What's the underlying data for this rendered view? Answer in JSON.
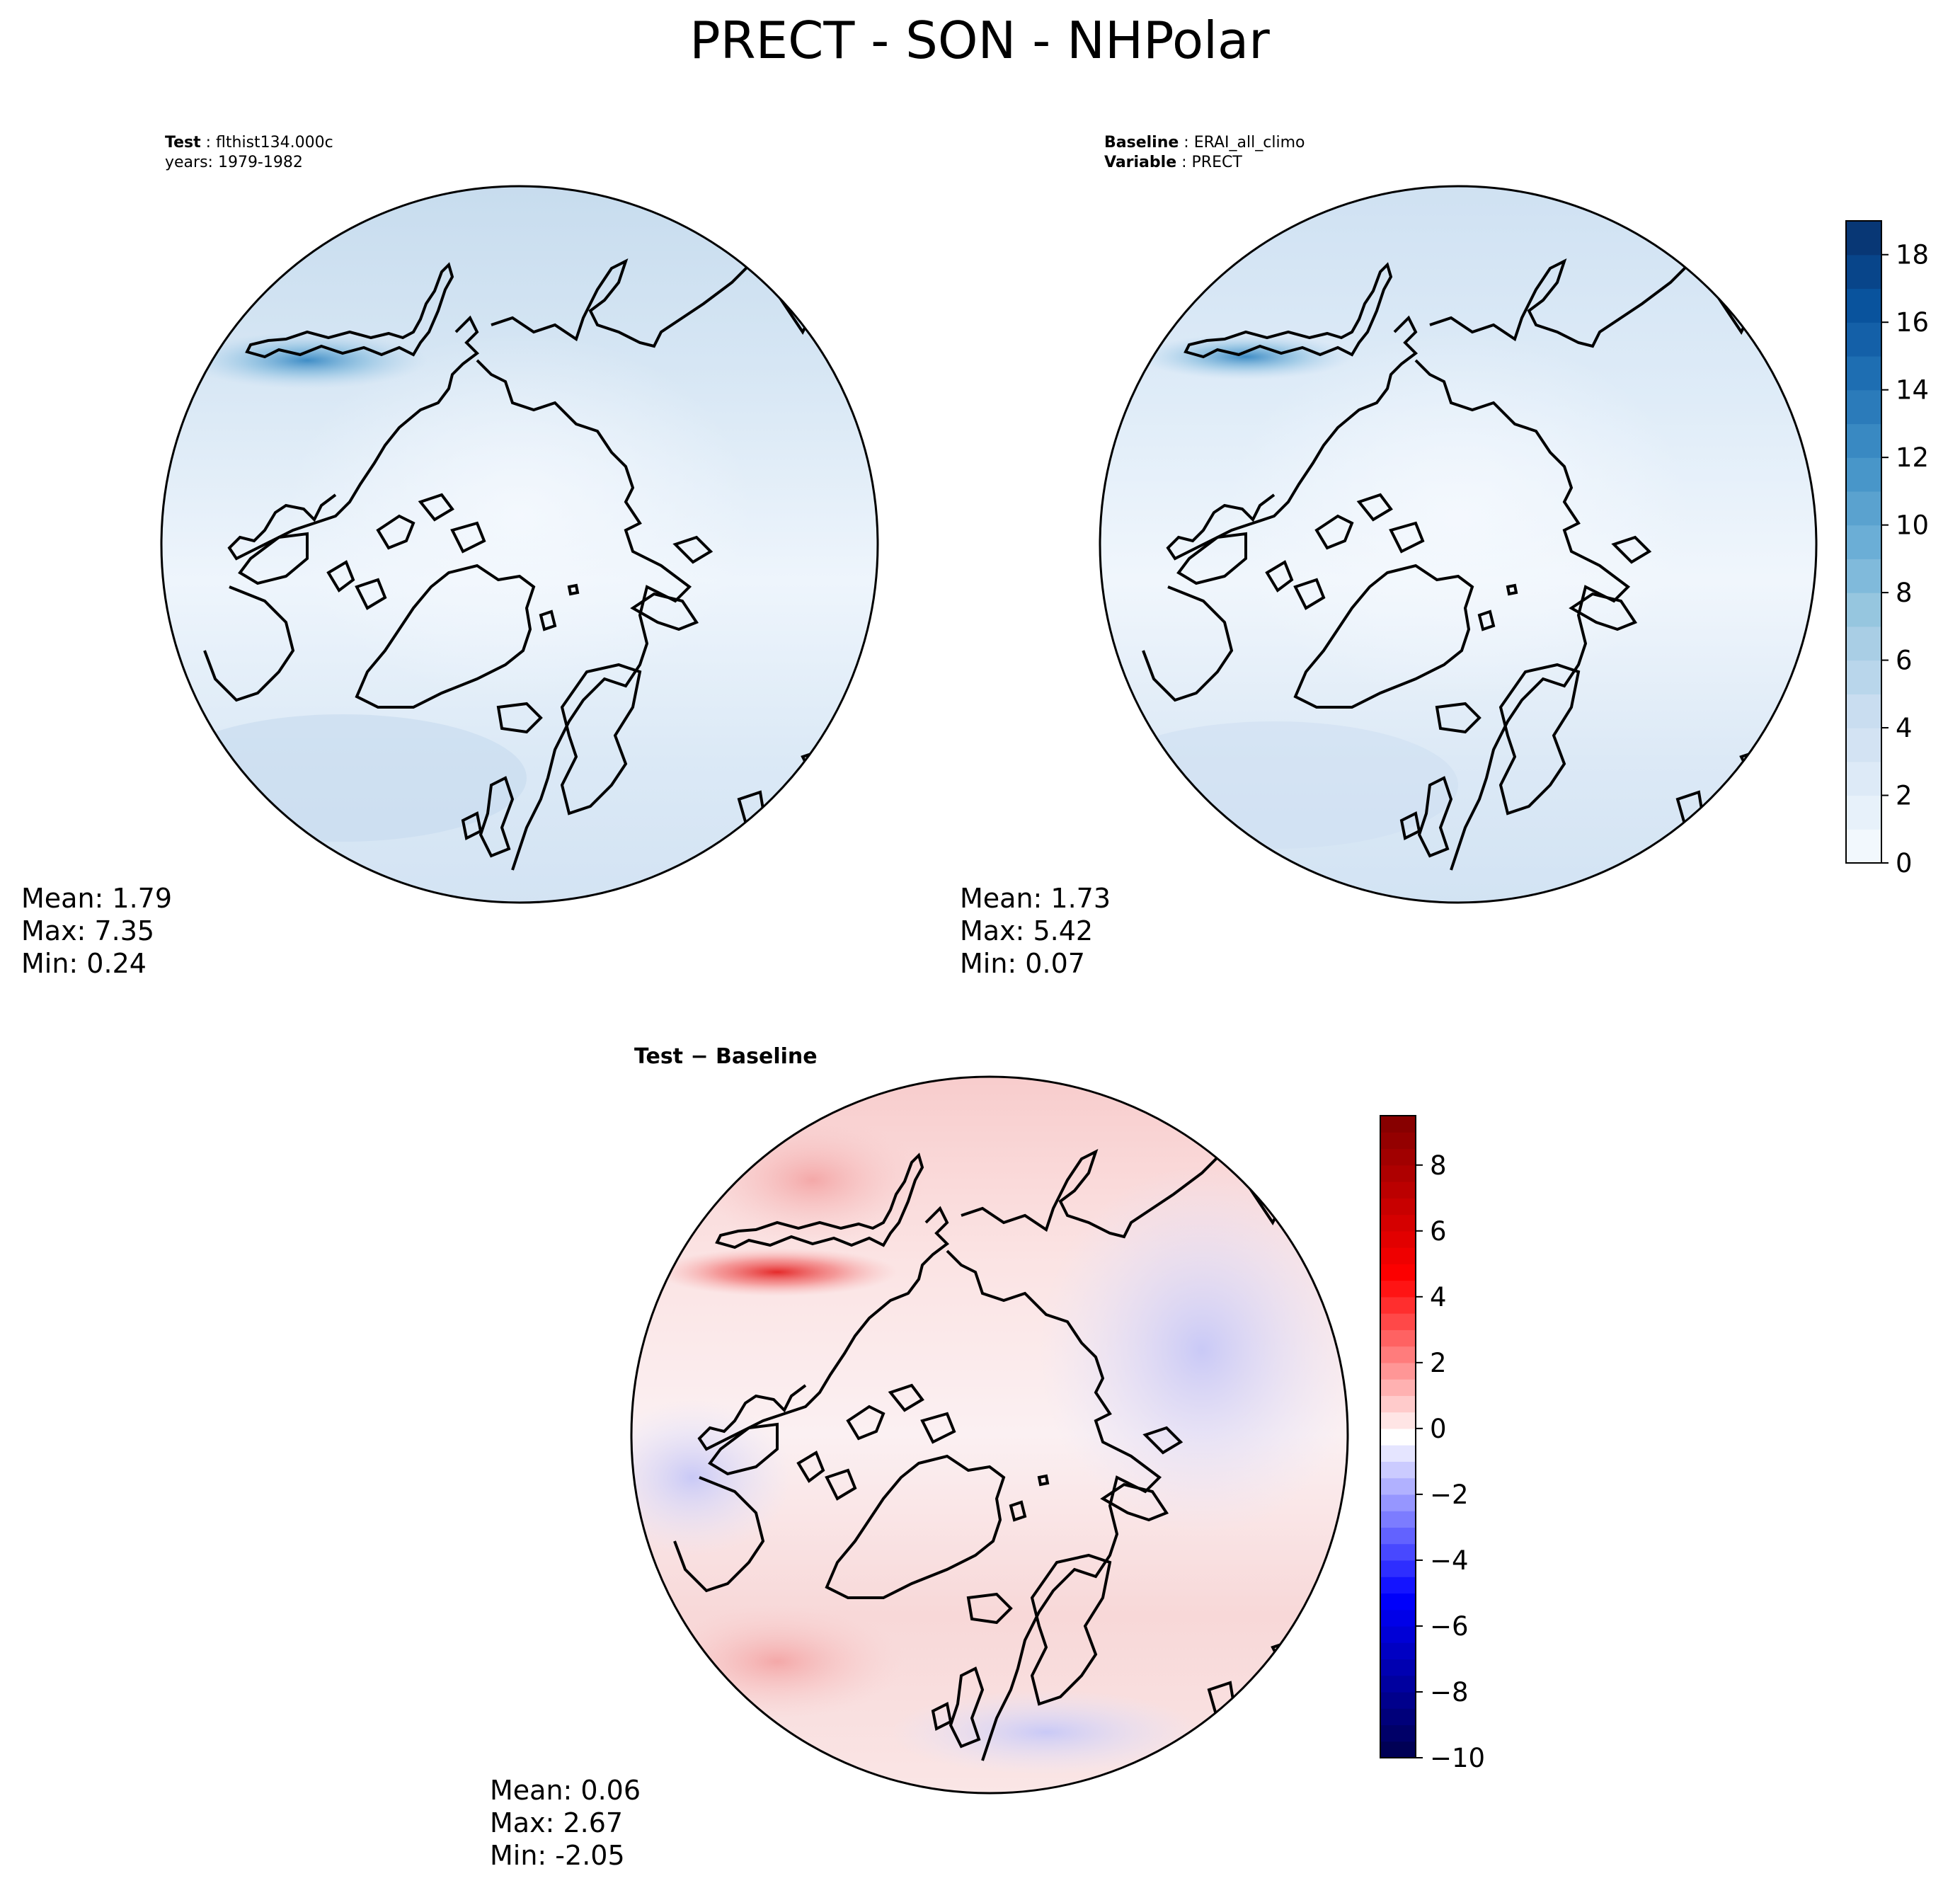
{
  "figure": {
    "title": "PRECT - SON - NHPolar"
  },
  "chart_data": [
    {
      "type": "heatmap",
      "projection": "north-polar-stereographic",
      "header": [
        {
          "label": "Test",
          "value": "flthist134.000c"
        },
        {
          "label": "",
          "value": "years: 1979-1982"
        }
      ],
      "stats": {
        "lines": [
          "Mean:  1.79",
          "Max:  7.35",
          "Min:  0.24"
        ],
        "mean": 1.79,
        "max": 7.35,
        "min": 0.24
      }
    },
    {
      "type": "heatmap",
      "projection": "north-polar-stereographic",
      "header": [
        {
          "label": "Baseline",
          "value": "ERAI_all_climo"
        },
        {
          "label": "Variable",
          "value": "PRECT"
        }
      ],
      "stats": {
        "lines": [
          "Mean:  1.73",
          "Max:  5.42",
          "Min:  0.07"
        ],
        "mean": 1.73,
        "max": 5.42,
        "min": 0.07
      }
    },
    {
      "type": "heatmap",
      "projection": "north-polar-stereographic",
      "title": "Test − Baseline",
      "stats": {
        "lines": [
          "Mean:  0.06",
          "Max:  2.67",
          "Min: -2.05"
        ],
        "mean": 0.06,
        "max": 2.67,
        "min": -2.05
      }
    }
  ],
  "colorbars": [
    {
      "name": "precip-colorbar",
      "colormap": "Blues",
      "range": [
        0,
        19
      ],
      "ticks": [
        0,
        2,
        4,
        6,
        8,
        10,
        12,
        14,
        16,
        18
      ],
      "tick_labels": [
        "0",
        "2",
        "4",
        "6",
        "8",
        "10",
        "12",
        "14",
        "16",
        "18"
      ],
      "levels": 19,
      "colors": [
        "#f7fbff",
        "#deebf7",
        "#c6dbef",
        "#9ecae1",
        "#6baed6",
        "#4292c6",
        "#2171b5",
        "#08519c",
        "#08306b"
      ]
    },
    {
      "name": "diff-colorbar",
      "colormap": "seismic",
      "range": [
        -10,
        9.5
      ],
      "ticks": [
        -10,
        -8,
        -6,
        -4,
        -2,
        0,
        2,
        4,
        6,
        8
      ],
      "tick_labels": [
        "−10",
        "−8",
        "−6",
        "−4",
        "−2",
        "0",
        "2",
        "4",
        "6",
        "8"
      ],
      "levels": 39,
      "colors": [
        "#00004c",
        "#0000ff",
        "#ffffff",
        "#ff0000",
        "#800000"
      ]
    }
  ]
}
